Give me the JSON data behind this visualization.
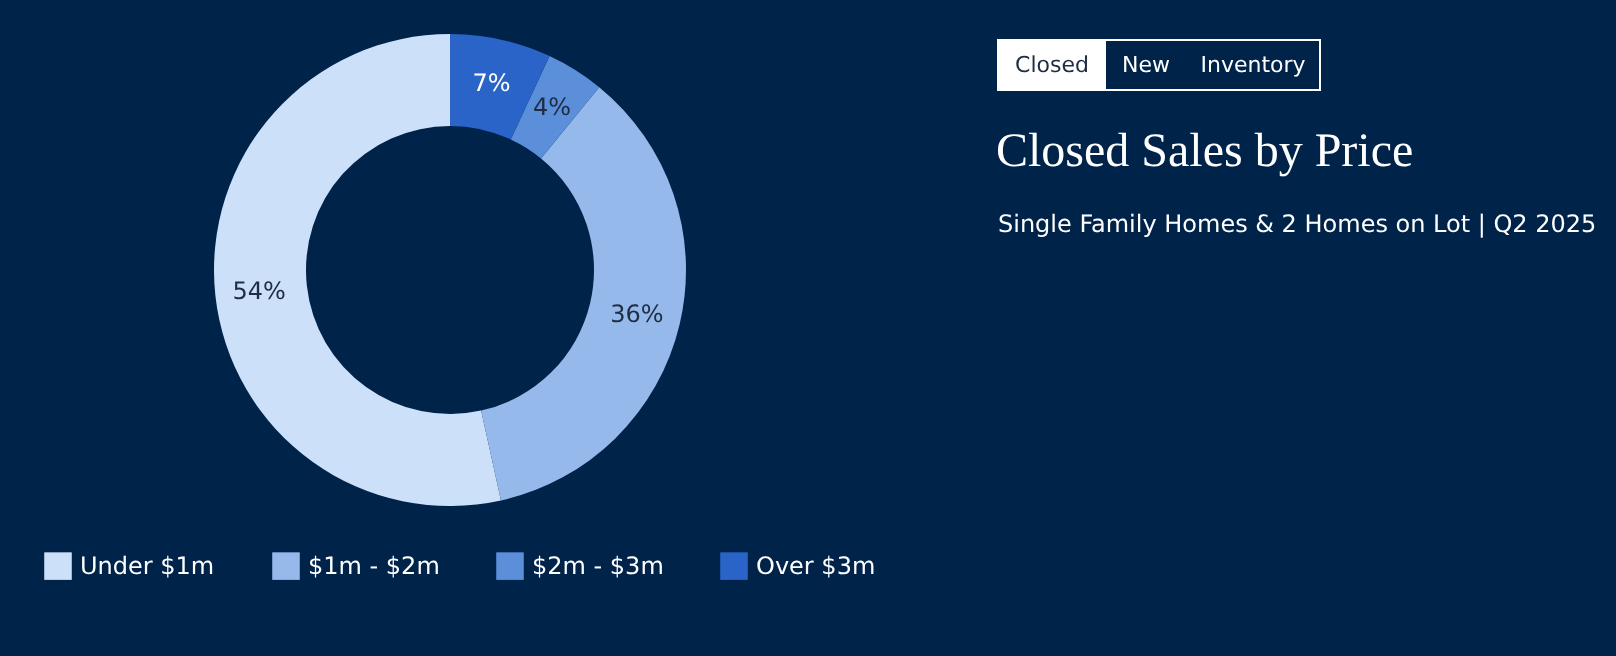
{
  "chart_data": {
    "type": "donut",
    "title": "Closed Sales by Price",
    "subtitle": "Single Family Homes & 2 Homes on Lot  |  Q2 2025",
    "categories": [
      "Under $1m",
      "$1m - $2m",
      "$2m - $3m",
      "Over $3m"
    ],
    "values": [
      54,
      36,
      4,
      7
    ],
    "value_labels": [
      "54%",
      "36%",
      "4%",
      "7%"
    ],
    "colors": [
      "#cce0fa",
      "#95b9ea",
      "#5b8fda",
      "#2a64c8"
    ],
    "annotations": [
      "Closed",
      "New",
      "Inventory"
    ],
    "legend": "bottom left"
  }
}
